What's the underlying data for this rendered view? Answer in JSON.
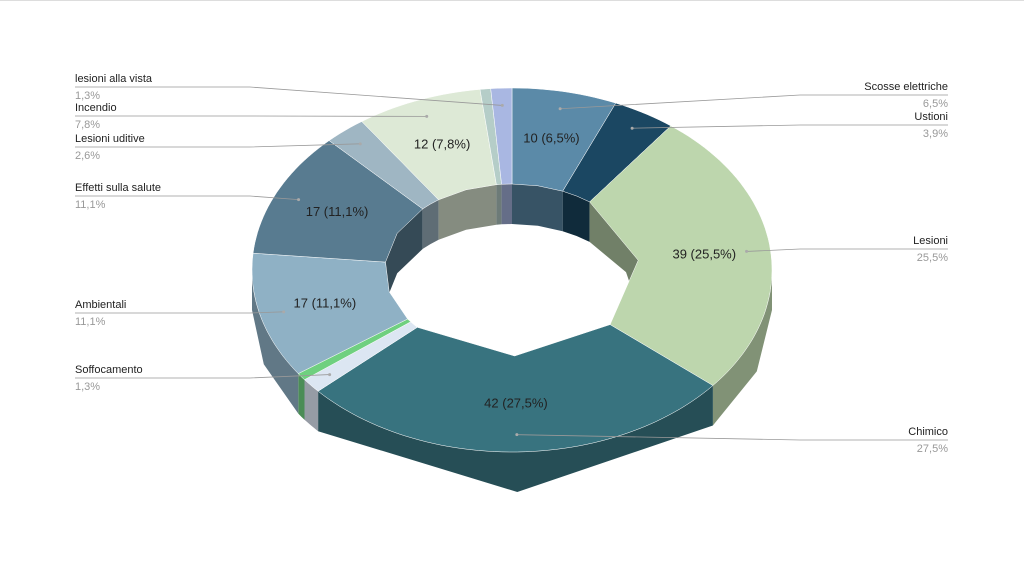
{
  "chart_data": {
    "type": "donut3d",
    "categories": [
      "Scosse elettriche",
      "Ustioni",
      "Lesioni",
      "Chimico",
      "Soffocamento",
      null,
      "Ambientali",
      "Effetti sulla salute",
      "Lesioni uditive",
      "Incendio",
      null,
      "lesioni alla vista"
    ],
    "values": [
      10,
      6,
      39,
      42,
      2,
      1,
      17,
      17,
      4,
      12,
      1,
      2
    ],
    "value_labels": [
      "10 (6,5%)",
      null,
      "39 (25,5%)",
      "42 (27,5%)",
      null,
      null,
      "17 (11,1%)",
      "17 (11,1%)",
      null,
      "12 (7,8%)",
      null,
      null
    ],
    "percent_labels": [
      "6,5%",
      "3,9%",
      "25,5%",
      "27,5%",
      "1,3%",
      null,
      "11,1%",
      "11,1%",
      "2,6%",
      "7,8%",
      null,
      "1,3%"
    ],
    "colors": [
      "#5b8aa8",
      "#1b4762",
      "#bdd6ad",
      "#38737f",
      "#dce6f2",
      "#6fd07f",
      "#8fb1c5",
      "#587b90",
      "#9fb6c3",
      "#dde9d6",
      "#b5cdc8",
      "#a9b7e2"
    ]
  }
}
